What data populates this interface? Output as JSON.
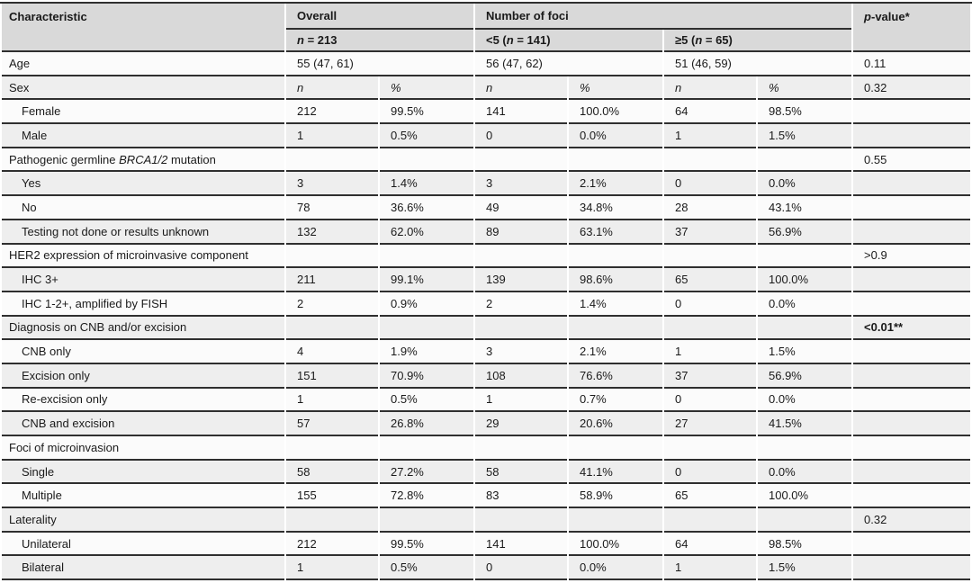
{
  "colors": {
    "header_bg": "#d9d9d9",
    "row_gray": "#eeeeee",
    "row_white": "#fbfbfb",
    "border": "#2f2f2f"
  },
  "table": {
    "header": {
      "characteristic": "Characteristic",
      "overall_label": "Overall",
      "overall_sub": {
        "pre": "",
        "n": "n",
        "post": " = 213"
      },
      "foci_label": "Number of foci",
      "foci_sub1": {
        "pre": "<5 (",
        "n": "n",
        "post": " = 141)"
      },
      "foci_sub2": {
        "pre": "≥5 (",
        "n": "n",
        "post": " = 65)"
      },
      "pvalue": {
        "p": "p",
        "rest": "-value",
        "sup": "*"
      },
      "col_n": "n",
      "col_pct": "%"
    },
    "rows": [
      {
        "kind": "stat",
        "label": [
          "Age"
        ],
        "overall": "55 (47, 61)",
        "lt5": "56 (47, 62)",
        "ge5": "51 (46, 59)",
        "p": "0.11"
      },
      {
        "kind": "subhead",
        "label": [
          "Sex"
        ],
        "p": "0.32"
      },
      {
        "kind": "data",
        "label": [
          "Female"
        ],
        "cells": [
          "212",
          "99.5%",
          "141",
          "100.0%",
          "64",
          "98.5%"
        ],
        "p": ""
      },
      {
        "kind": "data",
        "label": [
          "Male"
        ],
        "cells": [
          "1",
          "0.5%",
          "0",
          "0.0%",
          "1",
          "1.5%"
        ],
        "p": ""
      },
      {
        "kind": "cat",
        "label": [
          "Pathogenic germline ",
          {
            "i": "BRCA1/2"
          },
          " mutation"
        ],
        "p": "0.55"
      },
      {
        "kind": "data",
        "label": [
          "Yes"
        ],
        "cells": [
          "3",
          "1.4%",
          "3",
          "2.1%",
          "0",
          "0.0%"
        ],
        "p": ""
      },
      {
        "kind": "data",
        "label": [
          "No"
        ],
        "cells": [
          "78",
          "36.6%",
          "49",
          "34.8%",
          "28",
          "43.1%"
        ],
        "p": ""
      },
      {
        "kind": "data",
        "label": [
          "Testing not done or results unknown"
        ],
        "cells": [
          "132",
          "62.0%",
          "89",
          "63.1%",
          "37",
          "56.9%"
        ],
        "p": ""
      },
      {
        "kind": "cat",
        "label": [
          "HER2 expression of microinvasive component"
        ],
        "p": ">0.9"
      },
      {
        "kind": "data",
        "label": [
          "IHC 3+"
        ],
        "cells": [
          "211",
          "99.1%",
          "139",
          "98.6%",
          "65",
          "100.0%"
        ],
        "p": ""
      },
      {
        "kind": "data",
        "label": [
          "IHC 1-2+, amplified by FISH"
        ],
        "cells": [
          "2",
          "0.9%",
          "2",
          "1.4%",
          "0",
          "0.0%"
        ],
        "p": ""
      },
      {
        "kind": "cat",
        "label": [
          "Diagnosis on CNB and/or excision"
        ],
        "p": "<0.01**",
        "p_bold": true
      },
      {
        "kind": "data",
        "label": [
          "CNB only"
        ],
        "cells": [
          "4",
          "1.9%",
          "3",
          "2.1%",
          "1",
          "1.5%"
        ],
        "p": ""
      },
      {
        "kind": "data",
        "label": [
          "Excision only"
        ],
        "cells": [
          "151",
          "70.9%",
          "108",
          "76.6%",
          "37",
          "56.9%"
        ],
        "p": ""
      },
      {
        "kind": "data",
        "label": [
          "Re-excision only"
        ],
        "cells": [
          "1",
          "0.5%",
          "1",
          "0.7%",
          "0",
          "0.0%"
        ],
        "p": ""
      },
      {
        "kind": "data",
        "label": [
          "CNB and excision"
        ],
        "cells": [
          "57",
          "26.8%",
          "29",
          "20.6%",
          "27",
          "41.5%"
        ],
        "p": ""
      },
      {
        "kind": "cat",
        "label": [
          "Foci of microinvasion"
        ],
        "p": ""
      },
      {
        "kind": "data",
        "label": [
          "Single"
        ],
        "cells": [
          "58",
          "27.2%",
          "58",
          "41.1%",
          "0",
          "0.0%"
        ],
        "p": ""
      },
      {
        "kind": "data",
        "label": [
          "Multiple"
        ],
        "cells": [
          "155",
          "72.8%",
          "83",
          "58.9%",
          "65",
          "100.0%"
        ],
        "p": ""
      },
      {
        "kind": "cat",
        "label": [
          "Laterality"
        ],
        "p": "0.32"
      },
      {
        "kind": "data",
        "label": [
          "Unilateral"
        ],
        "cells": [
          "212",
          "99.5%",
          "141",
          "100.0%",
          "64",
          "98.5%"
        ],
        "p": ""
      },
      {
        "kind": "data",
        "label": [
          "Bilateral"
        ],
        "cells": [
          "1",
          "0.5%",
          "0",
          "0.0%",
          "1",
          "1.5%"
        ],
        "p": ""
      }
    ]
  }
}
